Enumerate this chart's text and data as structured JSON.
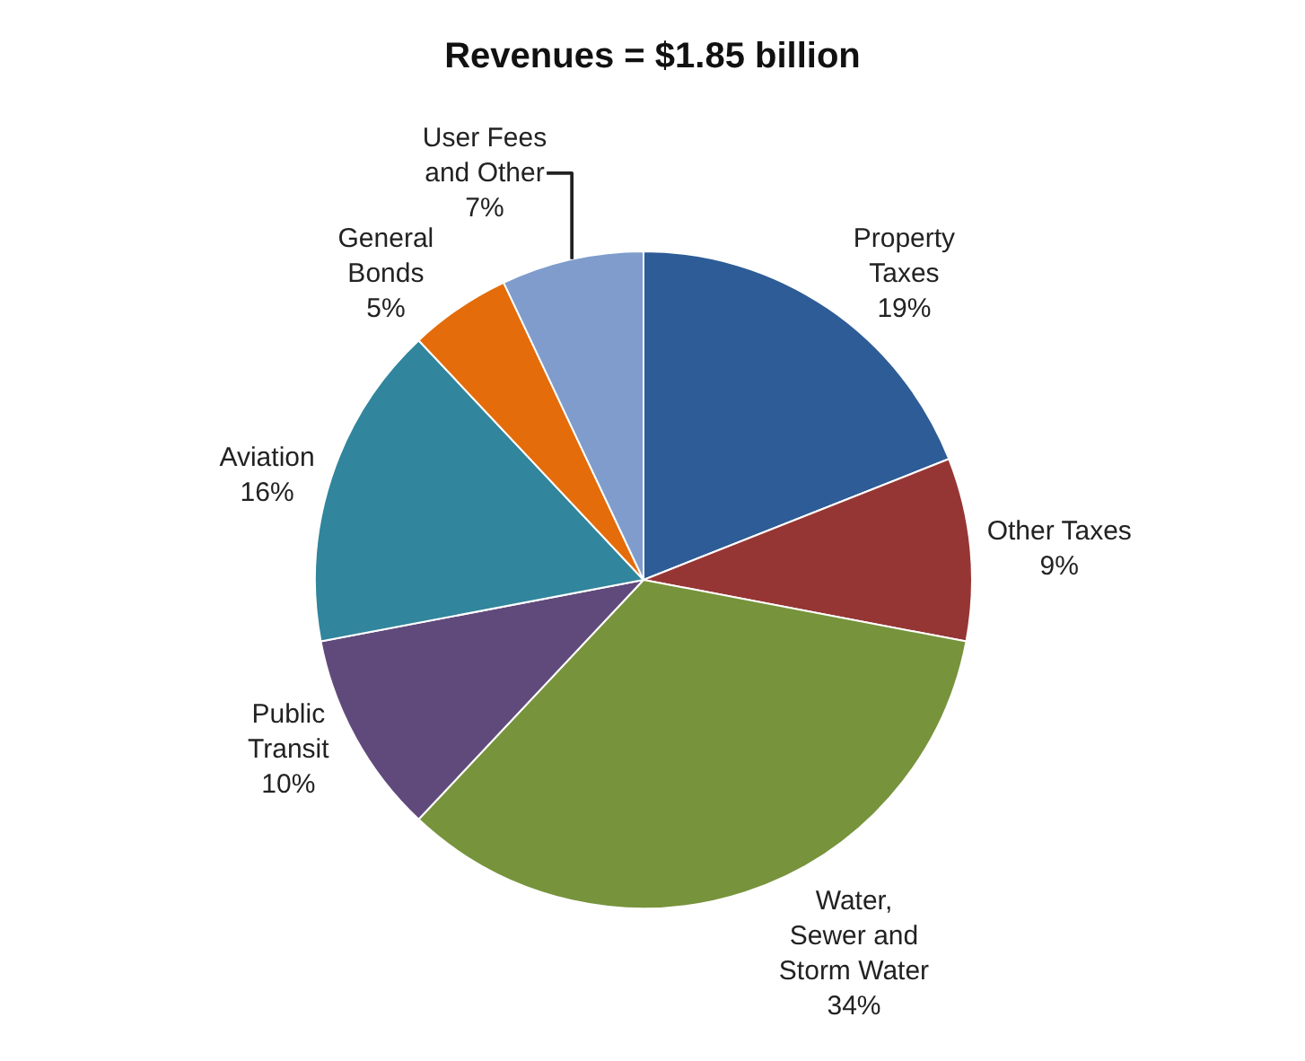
{
  "chart_data": {
    "type": "pie",
    "title": "Revenues = $1.85 billion",
    "categories": [
      "Property\nTaxes",
      "Other Taxes",
      "Water,\nSewer and\nStorm Water",
      "Public\nTransit",
      "Aviation",
      "General\nBonds",
      "User Fees\nand Other"
    ],
    "values": [
      19,
      9,
      34,
      10,
      16,
      5,
      7
    ],
    "value_labels": [
      "19%",
      "9%",
      "34%",
      "10%",
      "16%",
      "5%",
      "7%"
    ],
    "colors": [
      "#2e5c97",
      "#963634",
      "#77933c",
      "#604a7b",
      "#31859c",
      "#e46c0a",
      "#7f9ccc"
    ],
    "legend": false
  }
}
